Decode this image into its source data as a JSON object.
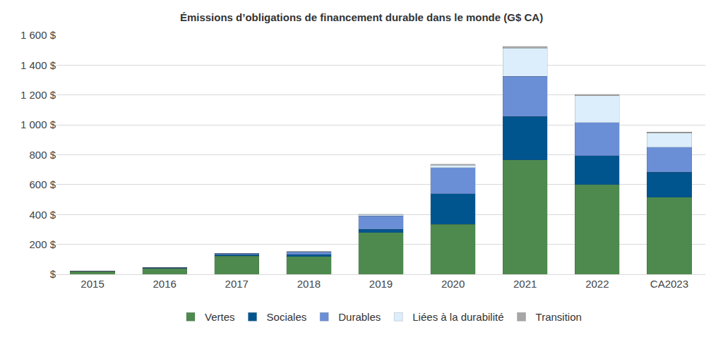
{
  "chart_data": {
    "type": "bar",
    "title": "Émissions d’obligations de financement durable dans le monde (G$ CA)",
    "categories": [
      "2015",
      "2016",
      "2017",
      "2018",
      "2019",
      "2020",
      "2021",
      "2022",
      "CA2023"
    ],
    "series": [
      {
        "name": "Vertes",
        "color": "#4e8a4e",
        "values": [
          18,
          40,
          122,
          120,
          280,
          335,
          765,
          600,
          515
        ]
      },
      {
        "name": "Sociales",
        "color": "#00558f",
        "values": [
          1,
          1,
          10,
          14,
          20,
          205,
          290,
          195,
          168
        ]
      },
      {
        "name": "Durables",
        "color": "#6b8fd6",
        "values": [
          3,
          4,
          8,
          17,
          90,
          175,
          270,
          220,
          167
        ]
      },
      {
        "name": "Liées à la durabilité",
        "color": "#dceefb",
        "values": [
          0,
          0,
          0,
          2,
          10,
          15,
          190,
          180,
          95
        ]
      },
      {
        "name": "Transition",
        "color": "#a6a6a6",
        "values": [
          0,
          0,
          0,
          0,
          3,
          8,
          10,
          10,
          8
        ]
      }
    ],
    "ylim": [
      0,
      1600
    ],
    "yticks": [
      {
        "value": 0,
        "label": "$"
      },
      {
        "value": 200,
        "label": "200 $"
      },
      {
        "value": 400,
        "label": "400 $"
      },
      {
        "value": 600,
        "label": "600 $"
      },
      {
        "value": 800,
        "label": "800 $"
      },
      {
        "value": 1000,
        "label": "1 000 $"
      },
      {
        "value": 1200,
        "label": "1 200 $"
      },
      {
        "value": 1400,
        "label": "1 400 $"
      },
      {
        "value": 1600,
        "label": "1 600 $"
      }
    ],
    "grid": true,
    "stacked": true,
    "legend": "bottom"
  }
}
